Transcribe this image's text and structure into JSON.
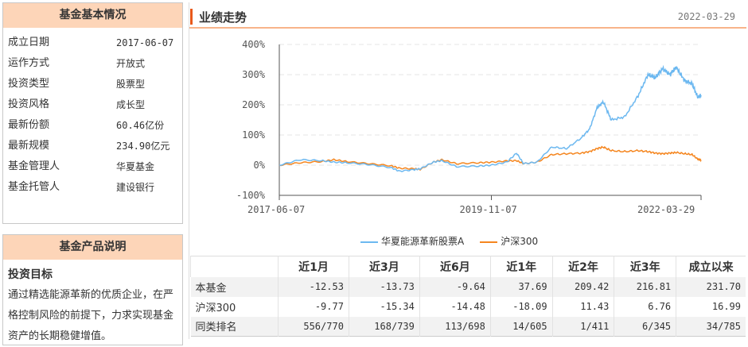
{
  "basic": {
    "title": "基金基本情况",
    "rows": [
      {
        "k": "成立日期",
        "v": "2017-06-07"
      },
      {
        "k": "运作方式",
        "v": "开放式"
      },
      {
        "k": "投资类型",
        "v": "股票型"
      },
      {
        "k": "投资风格",
        "v": "成长型"
      },
      {
        "k": "最新份额",
        "v": "60.46亿份"
      },
      {
        "k": "最新规模",
        "v": "234.90亿元"
      },
      {
        "k": "基金管理人",
        "v": "华夏基金"
      },
      {
        "k": "基金托管人",
        "v": "建设银行"
      }
    ]
  },
  "product": {
    "title": "基金产品说明",
    "subtitle": "投资目标",
    "text": "通过精选能源革新的优质企业，在严格控制风险的前提下，力求实现基金资产的长期稳健增值。"
  },
  "perf": {
    "title": "业绩走势",
    "date": "2022-03-29"
  },
  "chart_data": {
    "type": "line",
    "ylim": [
      -100,
      400
    ],
    "yticks": [
      "400%",
      "300%",
      "200%",
      "100%",
      "0%",
      "-100%"
    ],
    "xticks": [
      "2017-06-07",
      "2019-11-07",
      "2022-03-29"
    ],
    "grid": true,
    "legend": "bottom",
    "x": [
      "2017-06-07",
      "2017-09-01",
      "2017-12-01",
      "2018-01-20",
      "2018-03-15",
      "2018-06-15",
      "2018-09-15",
      "2018-10-20",
      "2018-12-20",
      "2019-01-15",
      "2019-03-10",
      "2019-04-15",
      "2019-06-15",
      "2019-09-15",
      "2019-11-07",
      "2020-01-10",
      "2020-02-20",
      "2020-03-20",
      "2020-05-15",
      "2020-07-15",
      "2020-09-15",
      "2020-11-15",
      "2020-12-20",
      "2021-01-20",
      "2021-02-15",
      "2021-03-20",
      "2021-05-15",
      "2021-07-10",
      "2021-08-20",
      "2021-09-20",
      "2021-10-20",
      "2021-11-20",
      "2021-12-15",
      "2022-01-20",
      "2022-02-20",
      "2022-03-15",
      "2022-03-29"
    ],
    "series": [
      {
        "name": "华夏能源革新股票A",
        "color": "#6cb8f0",
        "values": [
          0,
          18,
          15,
          10,
          8,
          2,
          -8,
          -20,
          -15,
          -12,
          10,
          15,
          -5,
          -3,
          0,
          10,
          40,
          5,
          10,
          60,
          55,
          90,
          120,
          190,
          210,
          150,
          160,
          230,
          300,
          290,
          320,
          300,
          325,
          280,
          270,
          225,
          232
        ]
      },
      {
        "name": "沪深300",
        "color": "#f5861f",
        "values": [
          0,
          8,
          12,
          18,
          12,
          5,
          -2,
          -10,
          -12,
          -14,
          10,
          18,
          5,
          8,
          10,
          14,
          15,
          5,
          10,
          35,
          38,
          40,
          45,
          55,
          60,
          48,
          45,
          48,
          45,
          40,
          38,
          40,
          42,
          38,
          35,
          20,
          17
        ]
      }
    ]
  },
  "table": {
    "headers": [
      "",
      "近1月",
      "近3月",
      "近6月",
      "近1年",
      "近2年",
      "近3年",
      "成立以来"
    ],
    "rows": [
      [
        "本基金",
        "-12.53",
        "-13.73",
        "-9.64",
        "37.69",
        "209.42",
        "216.81",
        "231.70"
      ],
      [
        "沪深300",
        "-9.77",
        "-15.34",
        "-14.48",
        "-18.09",
        "11.43",
        "6.76",
        "16.99"
      ],
      [
        "同类排名",
        "556/770",
        "168/739",
        "113/698",
        "14/605",
        "1/411",
        "6/345",
        "34/785"
      ]
    ]
  }
}
